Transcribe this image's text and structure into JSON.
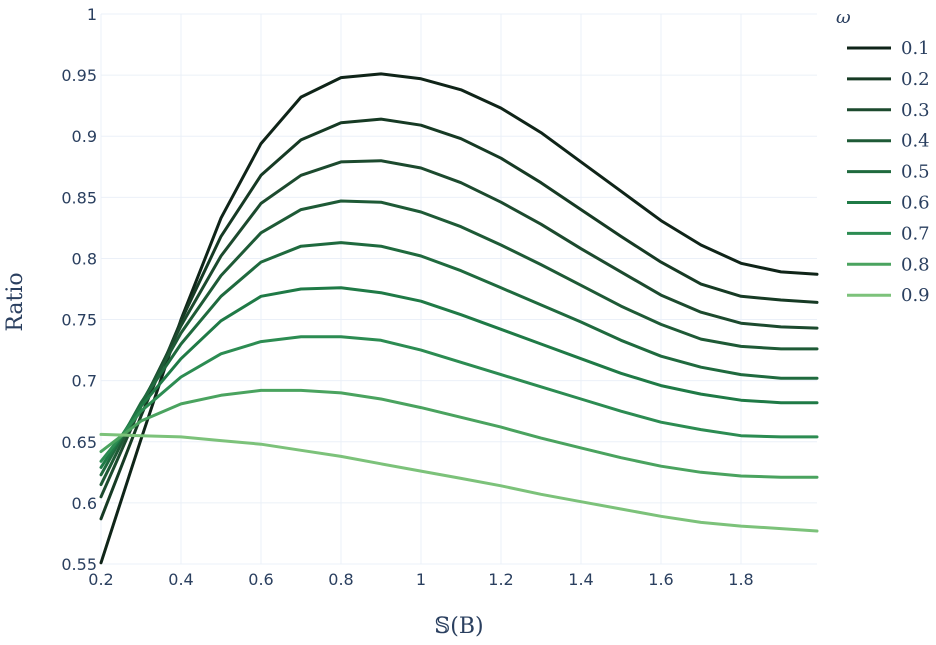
{
  "chart_data": {
    "type": "line",
    "xlabel": "𝕊(B)",
    "ylabel": "Ratio",
    "xlim": [
      0.2,
      1.99
    ],
    "ylim": [
      0.55,
      1.0
    ],
    "xticks": [
      0.2,
      0.4,
      0.6,
      0.8,
      1,
      1.2,
      1.4,
      1.6,
      1.8
    ],
    "xtick_labels": [
      "0.2",
      "0.4",
      "0.6",
      "0.8",
      "1",
      "1.2",
      "1.4",
      "1.6",
      "1.8"
    ],
    "yticks": [
      0.55,
      0.6,
      0.65,
      0.7,
      0.75,
      0.8,
      0.85,
      0.9,
      0.95,
      1.0
    ],
    "ytick_labels": [
      "0.55",
      "0.6",
      "0.65",
      "0.7",
      "0.75",
      "0.8",
      "0.85",
      "0.9",
      "0.95",
      "1"
    ],
    "grid": true,
    "legend_title": "ω",
    "legend_position": "top-right",
    "x": [
      0.2,
      0.3,
      0.4,
      0.5,
      0.6,
      0.7,
      0.8,
      0.9,
      1.0,
      1.1,
      1.2,
      1.3,
      1.4,
      1.5,
      1.6,
      1.7,
      1.8,
      1.9,
      1.99
    ],
    "series": [
      {
        "name": "0.1",
        "color": "#0f2418",
        "values": [
          0.551,
          0.652,
          0.75,
          0.833,
          0.894,
          0.932,
          0.948,
          0.951,
          0.947,
          0.938,
          0.923,
          0.903,
          0.879,
          0.855,
          0.831,
          0.811,
          0.796,
          0.789,
          0.787
        ]
      },
      {
        "name": "0.2",
        "color": "#163a24",
        "values": [
          0.587,
          0.671,
          0.749,
          0.818,
          0.868,
          0.897,
          0.911,
          0.914,
          0.909,
          0.898,
          0.882,
          0.862,
          0.84,
          0.818,
          0.797,
          0.779,
          0.769,
          0.766,
          0.764
        ]
      },
      {
        "name": "0.3",
        "color": "#1c4a2e",
        "values": [
          0.605,
          0.679,
          0.745,
          0.802,
          0.845,
          0.868,
          0.879,
          0.88,
          0.874,
          0.862,
          0.846,
          0.828,
          0.808,
          0.789,
          0.77,
          0.756,
          0.747,
          0.744,
          0.743
        ]
      },
      {
        "name": "0.4",
        "color": "#1e5a36",
        "values": [
          0.615,
          0.681,
          0.739,
          0.786,
          0.821,
          0.84,
          0.847,
          0.846,
          0.838,
          0.826,
          0.811,
          0.795,
          0.778,
          0.761,
          0.746,
          0.734,
          0.728,
          0.726,
          0.726
        ]
      },
      {
        "name": "0.5",
        "color": "#1f6a3e",
        "values": [
          0.623,
          0.682,
          0.73,
          0.769,
          0.797,
          0.81,
          0.813,
          0.81,
          0.802,
          0.79,
          0.776,
          0.762,
          0.748,
          0.733,
          0.72,
          0.711,
          0.705,
          0.702,
          0.702
        ]
      },
      {
        "name": "0.6",
        "color": "#1f7a46",
        "values": [
          0.629,
          0.679,
          0.718,
          0.749,
          0.769,
          0.775,
          0.776,
          0.772,
          0.765,
          0.754,
          0.742,
          0.73,
          0.718,
          0.706,
          0.696,
          0.689,
          0.684,
          0.682,
          0.682
        ]
      },
      {
        "name": "0.7",
        "color": "#2c8c52",
        "values": [
          0.634,
          0.675,
          0.703,
          0.722,
          0.732,
          0.736,
          0.736,
          0.733,
          0.725,
          0.715,
          0.705,
          0.695,
          0.685,
          0.675,
          0.666,
          0.66,
          0.655,
          0.654,
          0.654
        ]
      },
      {
        "name": "0.8",
        "color": "#4aa35f",
        "values": [
          0.642,
          0.667,
          0.681,
          0.688,
          0.692,
          0.692,
          0.69,
          0.685,
          0.678,
          0.67,
          0.662,
          0.653,
          0.645,
          0.637,
          0.63,
          0.625,
          0.622,
          0.621,
          0.621
        ]
      },
      {
        "name": "0.9",
        "color": "#7cc27a",
        "values": [
          0.656,
          0.655,
          0.654,
          0.651,
          0.648,
          0.643,
          0.638,
          0.632,
          0.626,
          0.62,
          0.614,
          0.607,
          0.601,
          0.595,
          0.589,
          0.584,
          0.581,
          0.579,
          0.577
        ]
      }
    ]
  }
}
